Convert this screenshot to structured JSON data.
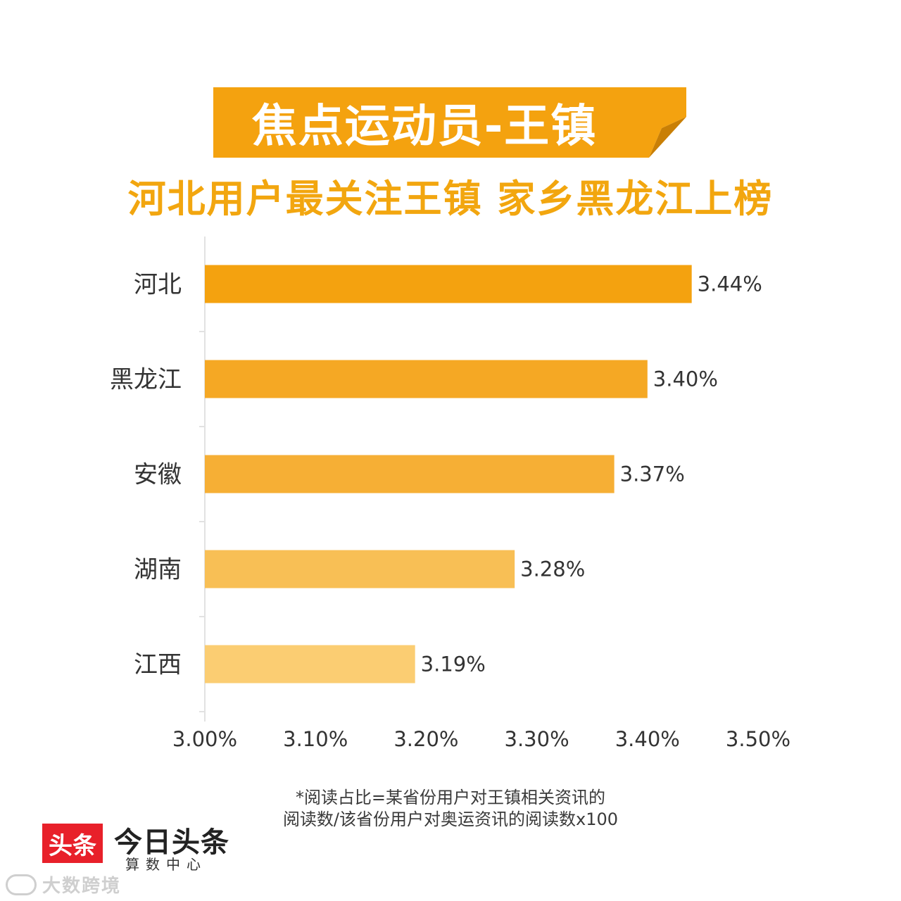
{
  "banner": {
    "title": "焦点运动员-王镇",
    "color": "#f4a20f"
  },
  "subtitle": "河北用户最关注王镇 家乡黑龙江上榜",
  "chart_data": {
    "type": "bar",
    "orientation": "horizontal",
    "categories": [
      "河北",
      "黑龙江",
      "安徽",
      "湖南",
      "江西"
    ],
    "values": [
      3.44,
      3.4,
      3.37,
      3.28,
      3.19
    ],
    "value_labels": [
      "3.44%",
      "3.40%",
      "3.37%",
      "3.28%",
      "3.19%"
    ],
    "bar_colors": [
      "#f4a20f",
      "#f5a824",
      "#f6af35",
      "#f8bf55",
      "#fbcd72"
    ],
    "xlim": [
      3.0,
      3.5
    ],
    "xticks": [
      3.0,
      3.1,
      3.2,
      3.3,
      3.4,
      3.5
    ],
    "xtick_labels": [
      "3.00%",
      "3.10%",
      "3.20%",
      "3.30%",
      "3.40%",
      "3.50%"
    ],
    "grid": false,
    "legend": "none"
  },
  "footnote": {
    "line1": "*阅读占比=某省份用户对王镇相关资讯的",
    "line2": "阅读数/该省份用户对奥运资讯的阅读数x100"
  },
  "logo": {
    "badge": "头条",
    "name": "今日头条",
    "sub": "算数中心",
    "badge_color": "#e8202a"
  },
  "watermark": {
    "text": "大数跨境"
  }
}
